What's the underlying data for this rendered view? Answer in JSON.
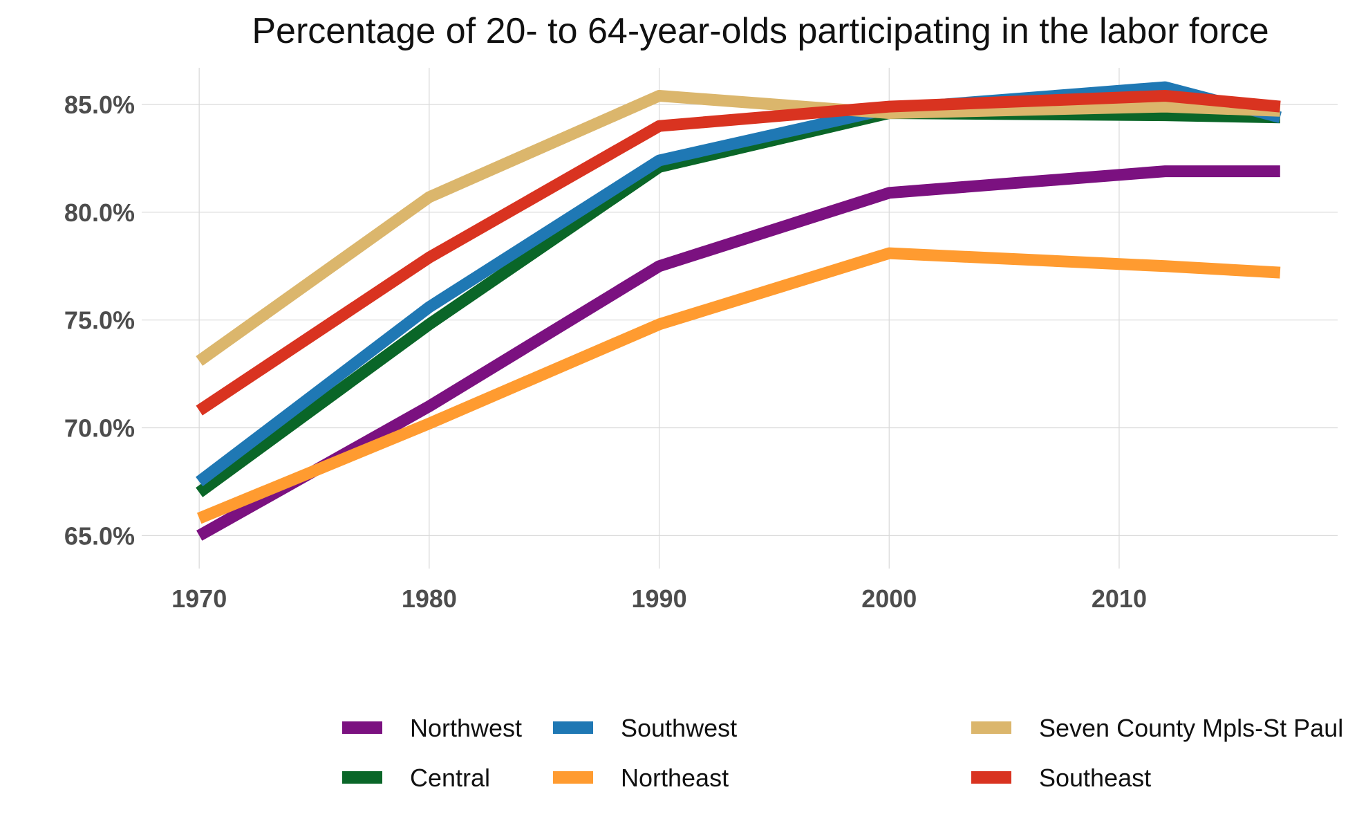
{
  "chart_data": {
    "type": "line",
    "title": "Percentage of 20- to 64-year-olds participating in the labor force",
    "xlabel": "",
    "ylabel": "",
    "x": [
      1970,
      1980,
      1990,
      2000,
      2012,
      2017
    ],
    "x_ticks": [
      1970,
      1980,
      1990,
      2000,
      2010
    ],
    "x_tick_labels": [
      "1970",
      "1980",
      "1990",
      "2000",
      "2010"
    ],
    "y_ticks": [
      65,
      70,
      75,
      80,
      85
    ],
    "y_tick_labels": [
      "65.0%",
      "70.0%",
      "75.0%",
      "80.0%",
      "85.0%"
    ],
    "xlim": [
      1967.5,
      2019.5
    ],
    "ylim": [
      63.6,
      86.7
    ],
    "grid": true,
    "legend_position": "bottom",
    "series": [
      {
        "name": "Northwest",
        "color": "#7b1180",
        "values": [
          65.0,
          71.0,
          77.5,
          80.9,
          81.9,
          81.9
        ]
      },
      {
        "name": "Central",
        "color": "#0a6628",
        "values": [
          67.0,
          74.8,
          82.1,
          84.6,
          84.5,
          84.4
        ]
      },
      {
        "name": "Southwest",
        "color": "#1f78b4",
        "values": [
          67.5,
          75.6,
          82.4,
          84.8,
          85.8,
          84.4
        ]
      },
      {
        "name": "Northeast",
        "color": "#ff9b30",
        "values": [
          65.8,
          70.2,
          74.8,
          78.1,
          77.5,
          77.2
        ]
      },
      {
        "name": "Seven County Mpls-St Paul",
        "color": "#dbb66c",
        "values": [
          73.1,
          80.7,
          85.4,
          84.6,
          84.9,
          84.7
        ]
      },
      {
        "name": "Southeast",
        "color": "#d93320",
        "values": [
          70.8,
          77.9,
          84.0,
          84.9,
          85.4,
          84.9
        ]
      }
    ]
  }
}
